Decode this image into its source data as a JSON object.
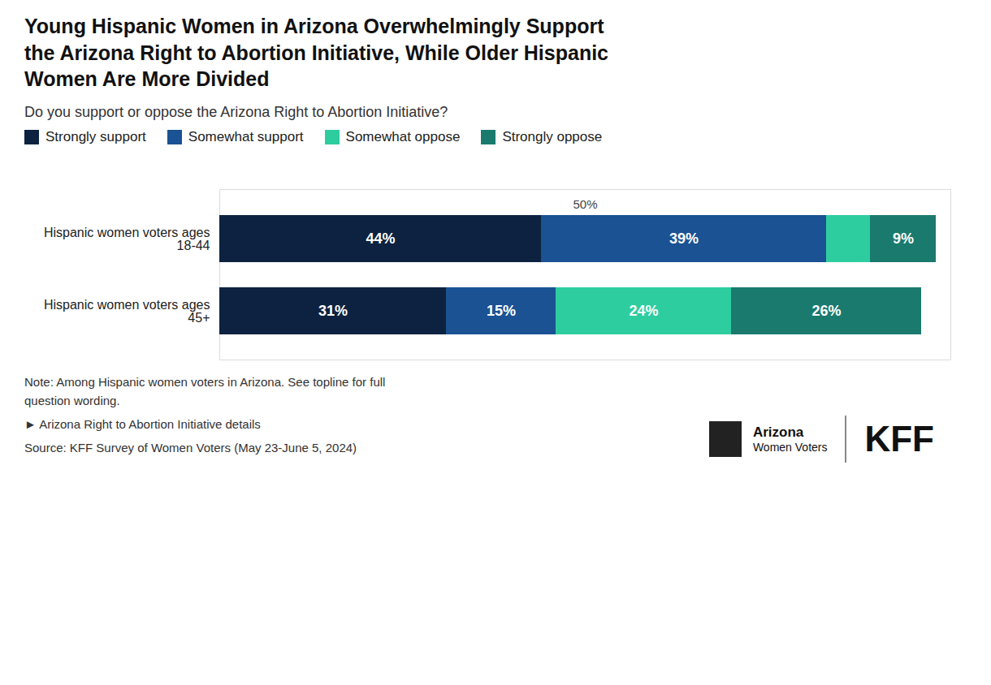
{
  "chart_data": {
    "type": "bar",
    "orientation": "horizontal",
    "stacked": true,
    "title": "Young Hispanic Women in Arizona Overwhelmingly Support\nthe Arizona Right to Abortion Initiative, While Older Hispanic\nWomen Are More Divided",
    "subtitle": "Do you support or oppose the Arizona Right to Abortion Initiative?",
    "categories": [
      "Hispanic women voters ages\n18-44",
      "Hispanic women voters ages\n45+"
    ],
    "series": [
      {
        "name": "Strongly support",
        "color": "#0d2240",
        "values": [
          44,
          31
        ],
        "value_labels": [
          "44%",
          "31%"
        ]
      },
      {
        "name": "Somewhat support",
        "color": "#1a5294",
        "values": [
          39,
          15
        ],
        "value_labels": [
          "39%",
          "15%"
        ]
      },
      {
        "name": "Somewhat oppose",
        "color": "#2ecda0",
        "values": [
          6,
          24
        ],
        "value_labels": [
          null,
          "24%"
        ]
      },
      {
        "name": "Strongly oppose",
        "color": "#1a7a6e",
        "values": [
          9,
          26
        ],
        "value_labels": [
          "9%",
          "26%"
        ]
      }
    ],
    "xlim": [
      0,
      100
    ],
    "tick_labels": false,
    "grid": false,
    "data_labels": true,
    "legend": "top",
    "annotations": [
      {
        "x": 50,
        "text": "50%"
      }
    ],
    "notes": [
      "Note: Among Hispanic women voters in Arizona. See topline for full\nquestion wording.",
      "►  Arizona Right to Abortion Initiative details",
      "Source: KFF Survey of Women Voters (May 23-June 5, 2024)"
    ],
    "logo": [
      "Arizona",
      "Women Voters",
      "KFF"
    ]
  }
}
